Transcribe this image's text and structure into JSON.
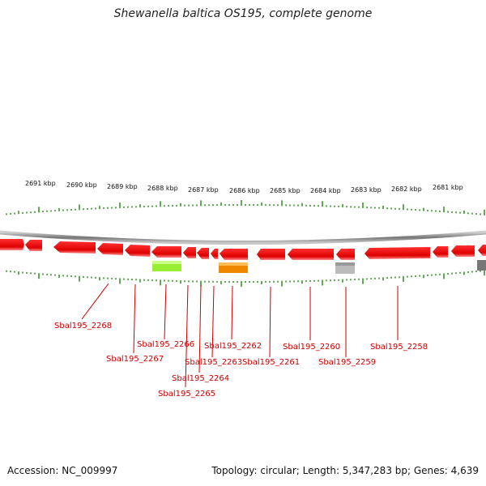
{
  "title": "Shewanella baltica OS195, complete genome",
  "accession": "Accession: NC_009997",
  "summary": "Topology: circular; Length: 5,347,283 bp; Genes: 4,639",
  "colors": {
    "gene": "#ee0000",
    "label": "#cc0000",
    "tick": "#2e8b1e",
    "backbone": "#888888",
    "feature_green": "#99ee33",
    "feature_orange": "#ee8800",
    "feature_gray": "#bbbbbb",
    "feature_dark": "#777777"
  },
  "kbp_labels": [
    "2691 kbp",
    "2690 kbp",
    "2689 kbp",
    "2688 kbp",
    "2687 kbp",
    "2686 kbp",
    "2685 kbp",
    "2684 kbp",
    "2683 kbp",
    "2682 kbp",
    "2681 kbp"
  ],
  "gene_labels": [
    "Sbal195_2268",
    "Sbal195_2267",
    "Sbal195_2266",
    "Sbal195_2265",
    "Sbal195_2264",
    "Sbal195_2263",
    "Sbal195_2262",
    "Sbal195_2261",
    "Sbal195_2260",
    "Sbal195_2259",
    "Sbal195_2258"
  ]
}
